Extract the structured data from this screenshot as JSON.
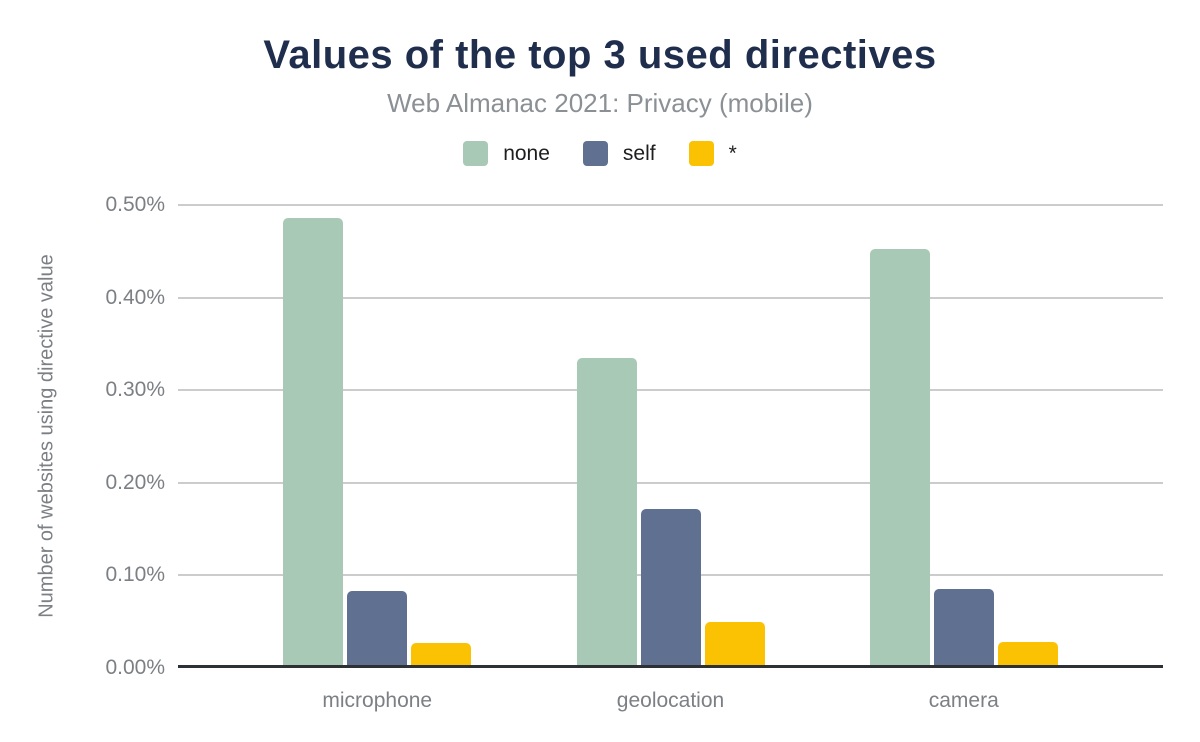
{
  "chart_data": {
    "type": "bar",
    "title": "Values of the top 3 used directives",
    "subtitle": "Web Almanac 2021: Privacy (mobile)",
    "ylabel": "Number of websites using directive value",
    "xlabel": "",
    "categories": [
      "microphone",
      "geolocation",
      "camera"
    ],
    "series": [
      {
        "name": "none",
        "color": "#a8c9b6",
        "values": [
          0.486,
          0.335,
          0.453
        ]
      },
      {
        "name": "self",
        "color": "#5f7090",
        "values": [
          0.083,
          0.172,
          0.085
        ]
      },
      {
        "name": "*",
        "color": "#fbc103",
        "values": [
          0.027,
          0.05,
          0.028
        ]
      }
    ],
    "ylim": [
      0,
      0.5
    ],
    "yticks": [
      {
        "value": 0.0,
        "label": "0.00%"
      },
      {
        "value": 0.1,
        "label": "0.10%"
      },
      {
        "value": 0.2,
        "label": "0.20%"
      },
      {
        "value": 0.3,
        "label": "0.30%"
      },
      {
        "value": 0.4,
        "label": "0.40%"
      },
      {
        "value": 0.5,
        "label": "0.50%"
      }
    ],
    "grid": true,
    "legend_position": "top",
    "unit": "percent of websites"
  }
}
